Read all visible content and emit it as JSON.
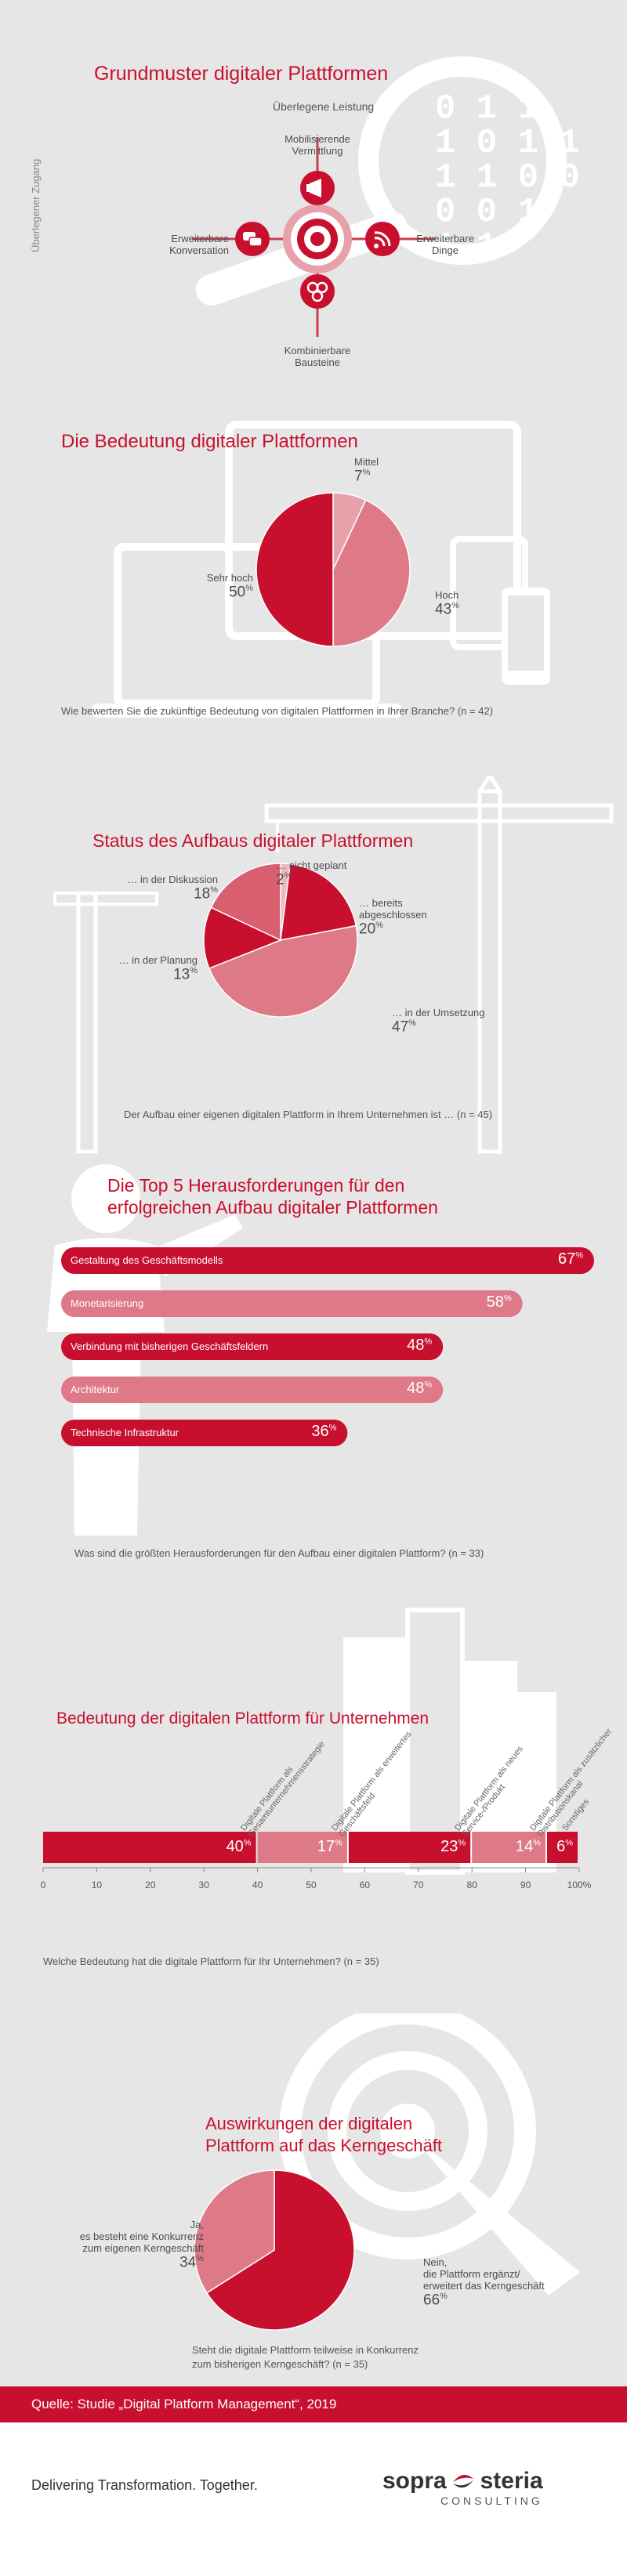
{
  "section1": {
    "title": "Grundmuster digitaler Plattformen",
    "top_label": "Überlegene Leistung",
    "side_label": "Überlegener Zugang",
    "nodes": {
      "top": "Mobilisierende\nVermittlung",
      "left": "Erweiterbare\nKonversation",
      "right": "Erweiterbare\nDinge",
      "bottom": "Kombinierbare\nBausteine"
    },
    "binary": [
      "0 1 1",
      "1 0 1 1",
      "1 1 0 0",
      "0 0 1",
      "1 1"
    ]
  },
  "chart_data": [
    {
      "type": "pie",
      "title": "Die Bedeutung digitaler Plattformen",
      "slices": [
        {
          "label": "Mittel",
          "value": 7
        },
        {
          "label": "Hoch",
          "value": 43
        },
        {
          "label": "Sehr hoch",
          "value": 50
        }
      ],
      "caption": "Wie bewerten Sie die zukünftige Bedeutung von digitalen Plattformen in Ihrer Branche? (n = 42)",
      "colors": [
        "#e8a1aa",
        "#de7a88",
        "#c8102e"
      ]
    },
    {
      "type": "pie",
      "title": "Status des Aufbaus digitaler Plattformen",
      "slices": [
        {
          "label": "… nicht geplant",
          "value": 2
        },
        {
          "label": "… bereits abgeschlossen",
          "value": 20
        },
        {
          "label": "… in der Umsetzung",
          "value": 47
        },
        {
          "label": "… in der Planung",
          "value": 13
        },
        {
          "label": "… in der Diskussion",
          "value": 18
        }
      ],
      "caption": "Der Aufbau einer eigenen digitalen Plattform in Ihrem Unternehmen ist … (n = 45)",
      "colors": [
        "#eeb8bf",
        "#c8102e",
        "#de7a88",
        "#c8102e",
        "#d95f70"
      ]
    },
    {
      "type": "bar",
      "title": "Die Top 5 Herausforderungen für den erfolgreichen Aufbau digitaler Plattformen",
      "categories": [
        "Gestaltung des Geschäftsmodells",
        "Monetarisierung",
        "Verbindung mit bisherigen Geschäftsfeldern",
        "Architektur",
        "Technische Infrastruktur"
      ],
      "values": [
        67,
        58,
        48,
        48,
        36
      ],
      "caption": "Was sind die größten Herausforderungen für den Aufbau einer digitalen Plattform? (n = 33)",
      "colors": [
        "#c8102e",
        "#de7a88",
        "#c8102e",
        "#de7a88",
        "#c8102e"
      ]
    },
    {
      "type": "bar",
      "title": "Bedeutung der digitalen Plattform für Unternehmen",
      "categories": [
        "Digitale Plattform als Gesamtunternehmensstrategie",
        "Digitale Plattform als erweitertes Geschäftsfeld",
        "Digitale Plattform als neues Service-/Produkt",
        "Digitale Plattform als zusätzlicher Distributionskanal",
        "Sonstiges"
      ],
      "values": [
        40,
        17,
        23,
        14,
        6
      ],
      "xticks": [
        "0",
        "10",
        "20",
        "30",
        "40",
        "50",
        "60",
        "70",
        "80",
        "90",
        "100%"
      ],
      "caption": "Welche Bedeutung hat die digitale Plattform für Ihr Unternehmen? (n = 35)",
      "colors": [
        "#c8102e",
        "#de7a88",
        "#c8102e",
        "#de7a88",
        "#c8102e"
      ]
    },
    {
      "type": "pie",
      "title": "Auswirkungen der digitalen Plattform auf das Kerngeschäft",
      "slices": [
        {
          "label": "Nein, die Plattform ergänzt/ erweitert das Kerngeschäft",
          "value": 66
        },
        {
          "label": "Ja, es besteht eine Konkurrenz zum eigenen Kerngeschäft",
          "value": 34
        }
      ],
      "caption": "Steht die digitale Plattform teilweise in Konkurrenz zum bisherigen Kerngeschäft? (n = 35)",
      "colors": [
        "#c8102e",
        "#de7a88"
      ]
    }
  ],
  "labels": {
    "sec2": {
      "mittel": "Mittel",
      "hoch": "Hoch",
      "sehr_hoch": "Sehr hoch"
    },
    "sec3": {
      "nicht_geplant": "… nicht geplant",
      "bereits": "… bereits\nabgeschlossen",
      "umsetzung": "… in der Umsetzung",
      "planung": "… in der Planung",
      "diskussion": "… in der Diskussion"
    },
    "sec4": {
      "line1": "Die Top 5 Herausforderungen für den",
      "line2": "erfolgreichen Aufbau digitaler Plattformen"
    },
    "sec6": {
      "line1": "Auswirkungen der digitalen",
      "line2": "Plattform auf das Kerngeschäft",
      "nein": "Nein,\ndie Plattform ergänzt/\nerweitert das Kerngeschäft",
      "ja": "Ja,\nes besteht eine Konkurrenz\nzum eigenen Kerngeschäft",
      "cap1": "Steht die digitale Plattform teilweise in Konkurrenz",
      "cap2": "zum bisherigen Kerngeschäft? (n = 35)"
    }
  },
  "footer": {
    "source": "Quelle: Studie „Digital Platform Management“, 2019",
    "tagline": "Delivering Transformation. Together.",
    "brand_left": "sopra",
    "brand_right": "steria",
    "brand_sub": "CONSULTING"
  },
  "colors": {
    "accent": "#c8102e",
    "light": "#de7a88",
    "lighter": "#e8a1aa",
    "bg": "#e6e6e6"
  }
}
